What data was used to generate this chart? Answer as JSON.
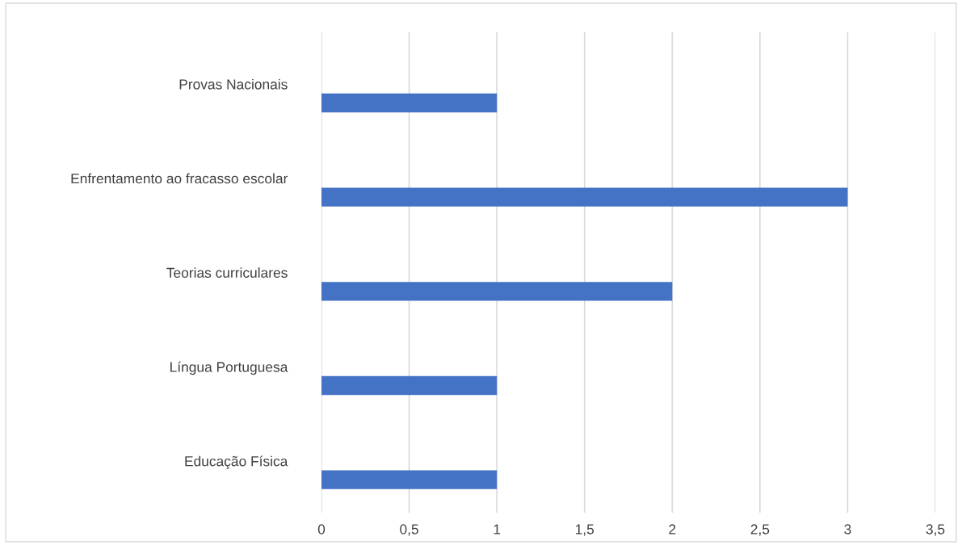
{
  "chart_data": {
    "type": "bar",
    "orientation": "horizontal",
    "categories": [
      "Provas Nacionais",
      "Enfrentamento ao fracasso escolar",
      "Teorias curriculares",
      "Língua Portuguesa",
      "Educação Física"
    ],
    "values": [
      1,
      3,
      2,
      1,
      1
    ],
    "color": "#4472c4",
    "xlim": [
      0,
      3.5
    ],
    "xticks": [
      0,
      {
        "value": 0.5,
        "label": "0,5"
      },
      1,
      {
        "value": 1.5,
        "label": "1,5"
      },
      2,
      {
        "value": 2.5,
        "label": "2,5"
      },
      3,
      {
        "value": 3.5,
        "label": "3,5"
      }
    ],
    "grid": "x",
    "legend": false
  }
}
